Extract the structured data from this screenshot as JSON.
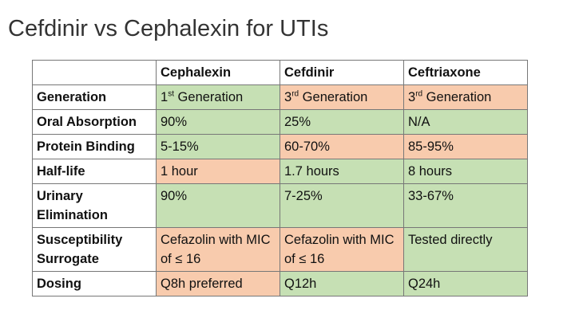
{
  "title": "Cefdinir vs Cephalexin for UTIs",
  "fills": {
    "green": "#c6e0b4",
    "orange": "#f8cbad"
  },
  "table": {
    "headers": [
      "Cephalexin",
      "Cefdinir",
      "Ceftriaxone"
    ],
    "rows": [
      {
        "label": "Generation",
        "cells": [
          {
            "text": "1",
            "sup": "st",
            "after": " Generation",
            "fill": "green"
          },
          {
            "text": "3",
            "sup": "rd",
            "after": " Generation",
            "fill": "orange"
          },
          {
            "text": "3",
            "sup": "rd",
            "after": " Generation",
            "fill": "orange"
          }
        ]
      },
      {
        "label": "Oral Absorption",
        "cells": [
          {
            "text": "90%",
            "fill": "green"
          },
          {
            "text": "25%",
            "fill": "green"
          },
          {
            "text": "N/A",
            "fill": "green"
          }
        ]
      },
      {
        "label": "Protein Binding",
        "cells": [
          {
            "text": "5-15%",
            "fill": "green"
          },
          {
            "text": "60-70%",
            "fill": "orange"
          },
          {
            "text": "85-95%",
            "fill": "orange"
          }
        ]
      },
      {
        "label": "Half-life",
        "cells": [
          {
            "text": "1 hour",
            "fill": "orange"
          },
          {
            "text": "1.7 hours",
            "fill": "green"
          },
          {
            "text": "8 hours",
            "fill": "green"
          }
        ]
      },
      {
        "label": "Urinary Elimination",
        "cells": [
          {
            "text": "90%",
            "fill": "green"
          },
          {
            "text": "7-25%",
            "fill": "green"
          },
          {
            "text": "33-67%",
            "fill": "green"
          }
        ]
      },
      {
        "label": "Susceptibility Surrogate",
        "cells": [
          {
            "text": "Cefazolin with MIC of ≤ 16",
            "fill": "orange"
          },
          {
            "text": "Cefazolin with MIC of ≤ 16",
            "fill": "orange"
          },
          {
            "text": "Tested directly",
            "fill": "green"
          }
        ]
      },
      {
        "label": "Dosing",
        "cells": [
          {
            "text": "Q8h preferred",
            "fill": "orange"
          },
          {
            "text": "Q12h",
            "fill": "green"
          },
          {
            "text": "Q24h",
            "fill": "green"
          }
        ]
      }
    ]
  }
}
